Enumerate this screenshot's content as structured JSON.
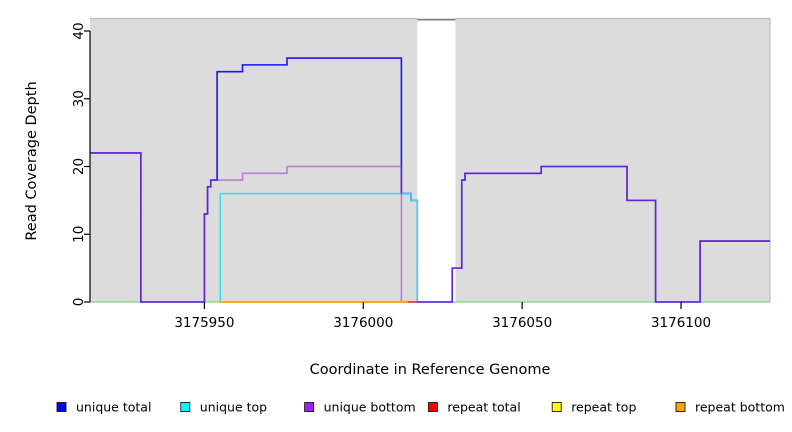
{
  "chart_data": {
    "type": "line",
    "subtype": "step-after coverage plot",
    "grid": false,
    "plot_background": "#DCDCDC",
    "panel_border_color": "#BDBDBD",
    "axis_color": "#000000",
    "x_axis": {
      "label": "Coordinate in Reference Genome",
      "ticks": [
        3175950,
        3176000,
        3176050,
        3176100
      ],
      "range": [
        3175914,
        3176128
      ]
    },
    "y_axis": {
      "label": "Read Coverage Depth",
      "ticks": [
        0,
        10,
        20,
        30,
        40
      ],
      "range": [
        0,
        41
      ]
    },
    "masked_region": {
      "x_start": 3176017,
      "x_end": 3176029,
      "fill": "#FFFFFF",
      "top_line_color": "#7F7F7F",
      "note": "white vertical band over plot with dark top edge"
    },
    "series": [
      {
        "name": "baseline (unlabeled green zero line)",
        "color": "#7FD87F",
        "opacity": 1,
        "width": 1.2,
        "steps": [
          [
            3175914,
            3176128,
            0
          ]
        ]
      },
      {
        "name": "unique total",
        "color": "#1A14F0",
        "opacity": 1,
        "width": 1.6,
        "steps": [
          [
            3175914,
            3175930,
            22
          ],
          [
            3175930,
            3175950,
            0
          ],
          [
            3175950,
            3175951,
            13
          ],
          [
            3175951,
            3175952,
            17
          ],
          [
            3175952,
            3175954,
            18
          ],
          [
            3175954,
            3175962,
            34
          ],
          [
            3175962,
            3175976,
            35
          ],
          [
            3175976,
            3176012,
            36
          ],
          [
            3176012,
            3176015,
            16
          ],
          [
            3176015,
            3176017,
            15
          ],
          [
            3176017,
            3176028,
            0
          ],
          [
            3176028,
            3176031,
            5
          ],
          [
            3176031,
            3176032,
            18
          ],
          [
            3176032,
            3176056,
            19
          ],
          [
            3176056,
            3176083,
            20
          ],
          [
            3176083,
            3176092,
            15
          ],
          [
            3176092,
            3176106,
            0
          ],
          [
            3176106,
            3176128,
            9
          ]
        ]
      },
      {
        "name": "unique top",
        "color": "#35DCE8",
        "opacity": 1,
        "width": 1.5,
        "steps": [
          [
            3175955,
            3175955,
            0
          ],
          [
            3175955,
            3176015,
            16
          ],
          [
            3176015,
            3176017,
            15
          ],
          [
            3176017,
            3176017,
            0
          ]
        ]
      },
      {
        "name": "unique bottom",
        "color": "#9932CC",
        "opacity": 0.55,
        "width": 1.6,
        "steps": [
          [
            3175914,
            3175930,
            22
          ],
          [
            3175930,
            3175950,
            0
          ],
          [
            3175950,
            3175951,
            13
          ],
          [
            3175951,
            3175952,
            17
          ],
          [
            3175952,
            3175962,
            18
          ],
          [
            3175962,
            3175976,
            19
          ],
          [
            3175976,
            3176012,
            20
          ],
          [
            3176012,
            3176028,
            0
          ],
          [
            3176028,
            3176031,
            5
          ],
          [
            3176031,
            3176032,
            18
          ],
          [
            3176032,
            3176056,
            19
          ],
          [
            3176056,
            3176083,
            20
          ],
          [
            3176083,
            3176092,
            15
          ],
          [
            3176092,
            3176106,
            0
          ],
          [
            3176106,
            3176128,
            9
          ]
        ]
      },
      {
        "name": "repeat total",
        "color": "#FF0000",
        "opacity": 0.65,
        "width": 1.6,
        "steps": [
          [
            3175955,
            3176017,
            0
          ]
        ]
      },
      {
        "name": "repeat top",
        "color": "#FFFF00",
        "opacity": 1,
        "width": 1.6,
        "steps": [
          [
            3175955,
            3176014,
            0
          ]
        ]
      },
      {
        "name": "repeat bottom",
        "color": "#FF9A10",
        "opacity": 1,
        "width": 1.6,
        "steps": [
          [
            3175955,
            3176014,
            0
          ]
        ]
      }
    ],
    "legend": {
      "position": "bottom",
      "items": [
        {
          "label": "unique total",
          "color": "#0000FF"
        },
        {
          "label": "unique top",
          "color": "#00FFFF"
        },
        {
          "label": "unique bottom",
          "color": "#A020F0"
        },
        {
          "label": "repeat total",
          "color": "#FF0000"
        },
        {
          "label": "repeat top",
          "color": "#FFFF00"
        },
        {
          "label": "repeat bottom",
          "color": "#FFA500"
        }
      ]
    }
  }
}
